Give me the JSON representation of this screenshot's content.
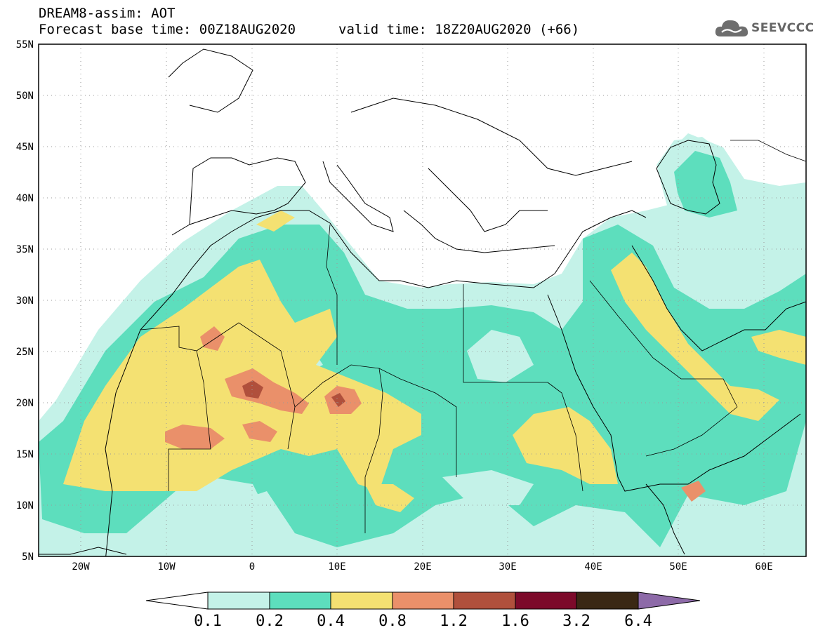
{
  "header": {
    "title": "DREAM8-assim: AOT",
    "base_time": "Forecast base time: 00Z18AUG2020",
    "valid_time": "valid time: 18Z20AUG2020 (+66)",
    "logo_text": "SEEVCCC"
  },
  "axes": {
    "lat_labels": [
      "55N",
      "50N",
      "45N",
      "40N",
      "35N",
      "30N",
      "25N",
      "20N",
      "15N",
      "10N",
      "5N"
    ],
    "lon_labels": [
      "20W",
      "10W",
      "0",
      "10E",
      "20E",
      "30E",
      "40E",
      "50E",
      "60E"
    ]
  },
  "colorbar": {
    "levels": [
      "0.1",
      "0.2",
      "0.4",
      "0.8",
      "1.2",
      "1.6",
      "3.2",
      "6.4"
    ],
    "colors": [
      "#ffffff",
      "#c4f2e8",
      "#5ddebd",
      "#f4e172",
      "#ea906a",
      "#b0503c",
      "#7c0a2a",
      "#3a2814",
      "#8d6aa8"
    ]
  }
}
